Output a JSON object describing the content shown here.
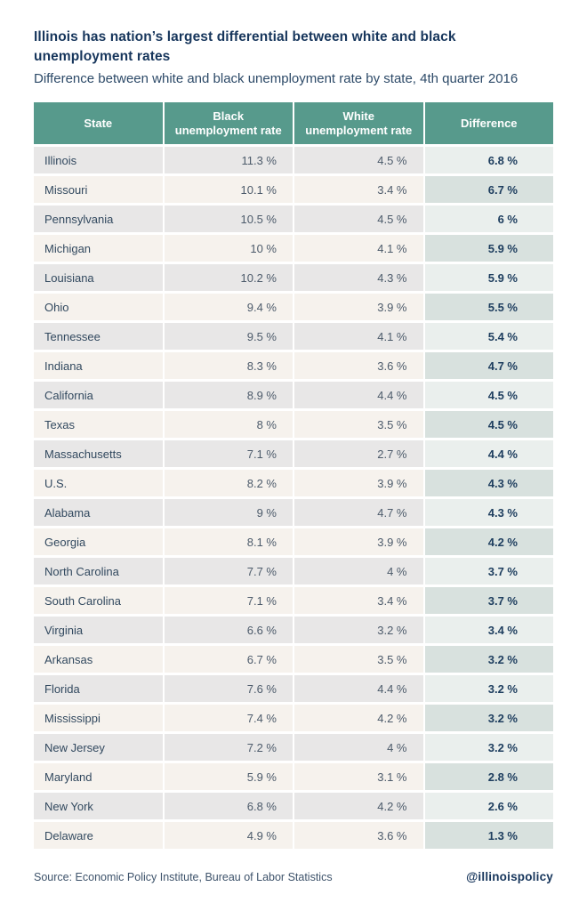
{
  "header": {
    "title": "Illinois has nation’s largest differential between white and black unemployment rates",
    "subtitle": "Difference between white and black unemployment rate by state, 4th quarter 2016"
  },
  "table": {
    "header_lines": [
      [
        "State"
      ],
      [
        "Black",
        "unemployment rate"
      ],
      [
        "White",
        "unemployment rate"
      ],
      [
        "Difference"
      ]
    ]
  },
  "chart_data": {
    "type": "table",
    "title": "Illinois has nation’s largest differential between white and black unemployment rates",
    "subtitle": "Difference between white and black unemployment rate by state, 4th quarter 2016",
    "unit": "%",
    "columns": [
      "State",
      "Black unemployment rate",
      "White unemployment rate",
      "Difference"
    ],
    "rows": [
      {
        "state": "Illinois",
        "black": 11.3,
        "white": 4.5,
        "difference": 6.8
      },
      {
        "state": "Missouri",
        "black": 10.1,
        "white": 3.4,
        "difference": 6.7
      },
      {
        "state": "Pennsylvania",
        "black": 10.5,
        "white": 4.5,
        "difference": 6
      },
      {
        "state": "Michigan",
        "black": 10,
        "white": 4.1,
        "difference": 5.9
      },
      {
        "state": "Louisiana",
        "black": 10.2,
        "white": 4.3,
        "difference": 5.9
      },
      {
        "state": "Ohio",
        "black": 9.4,
        "white": 3.9,
        "difference": 5.5
      },
      {
        "state": "Tennessee",
        "black": 9.5,
        "white": 4.1,
        "difference": 5.4
      },
      {
        "state": "Indiana",
        "black": 8.3,
        "white": 3.6,
        "difference": 4.7
      },
      {
        "state": "California",
        "black": 8.9,
        "white": 4.4,
        "difference": 4.5
      },
      {
        "state": "Texas",
        "black": 8,
        "white": 3.5,
        "difference": 4.5
      },
      {
        "state": "Massachusetts",
        "black": 7.1,
        "white": 2.7,
        "difference": 4.4
      },
      {
        "state": "U.S.",
        "black": 8.2,
        "white": 3.9,
        "difference": 4.3
      },
      {
        "state": "Alabama",
        "black": 9,
        "white": 4.7,
        "difference": 4.3
      },
      {
        "state": "Georgia",
        "black": 8.1,
        "white": 3.9,
        "difference": 4.2
      },
      {
        "state": "North Carolina",
        "black": 7.7,
        "white": 4,
        "difference": 3.7
      },
      {
        "state": "South Carolina",
        "black": 7.1,
        "white": 3.4,
        "difference": 3.7
      },
      {
        "state": "Virginia",
        "black": 6.6,
        "white": 3.2,
        "difference": 3.4
      },
      {
        "state": "Arkansas",
        "black": 6.7,
        "white": 3.5,
        "difference": 3.2
      },
      {
        "state": "Florida",
        "black": 7.6,
        "white": 4.4,
        "difference": 3.2
      },
      {
        "state": "Mississippi",
        "black": 7.4,
        "white": 4.2,
        "difference": 3.2
      },
      {
        "state": "New Jersey",
        "black": 7.2,
        "white": 4,
        "difference": 3.2
      },
      {
        "state": "Maryland",
        "black": 5.9,
        "white": 3.1,
        "difference": 2.8
      },
      {
        "state": "New York",
        "black": 6.8,
        "white": 4.2,
        "difference": 2.6
      },
      {
        "state": "Delaware",
        "black": 4.9,
        "white": 3.6,
        "difference": 1.3
      }
    ]
  },
  "colors": {
    "header_bg": "#579a8c",
    "row_odd_bg": "#e8e7e7",
    "row_even_bg": "#f6f2ed",
    "diff_odd_bg": "#eaefed",
    "diff_even_bg": "#d8e1de",
    "title_color": "#17365c"
  },
  "footer": {
    "source": "Source: Economic Policy Institute, Bureau of Labor Statistics",
    "handle": "@illinoispolicy"
  }
}
